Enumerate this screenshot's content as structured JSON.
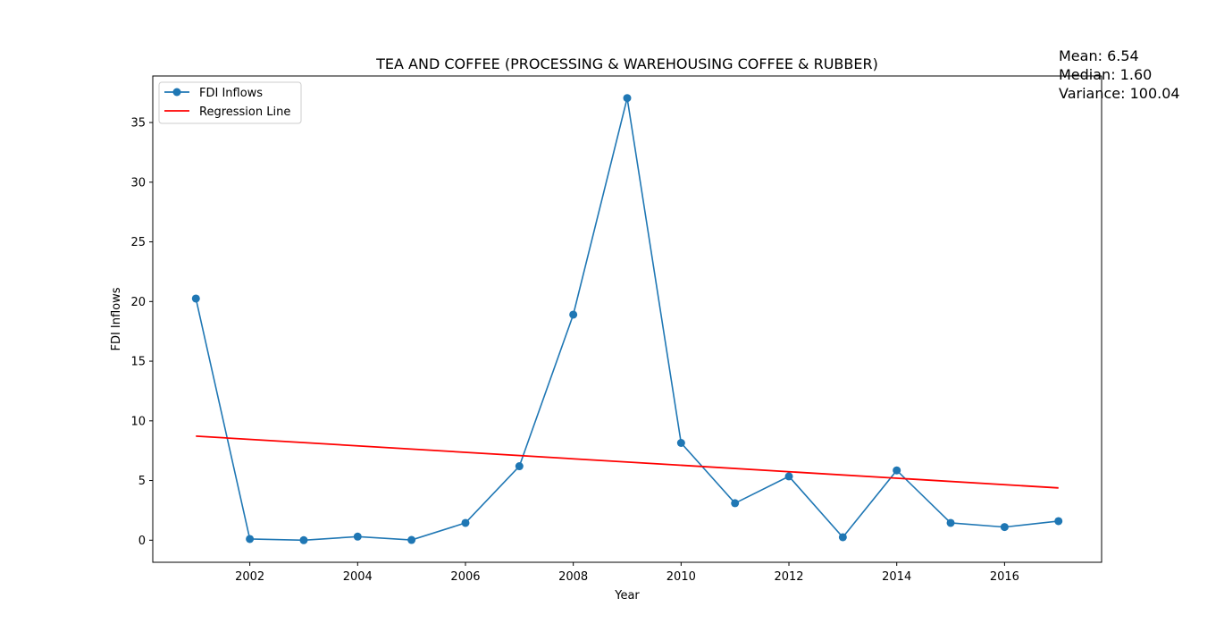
{
  "chart_data": {
    "type": "line",
    "title": "TEA AND COFFEE (PROCESSING & WAREHOUSING COFFEE & RUBBER)",
    "xlabel": "Year",
    "ylabel": "FDI Inflows",
    "xlim": [
      2000.2,
      2017.8
    ],
    "ylim": [
      -1.85,
      38.9
    ],
    "xticks": [
      2002,
      2004,
      2006,
      2008,
      2010,
      2012,
      2014,
      2016
    ],
    "yticks": [
      0,
      5,
      10,
      15,
      20,
      25,
      30,
      35
    ],
    "grid": false,
    "legend_position": "top-left",
    "series": [
      {
        "name": "FDI Inflows",
        "color": "#1f77b4",
        "marker": "circle",
        "x": [
          2001,
          2002,
          2003,
          2004,
          2005,
          2006,
          2007,
          2008,
          2009,
          2010,
          2011,
          2012,
          2013,
          2014,
          2015,
          2016,
          2017
        ],
        "y": [
          20.25,
          0.1,
          0.0,
          0.3,
          0.02,
          1.45,
          6.2,
          18.9,
          37.05,
          8.15,
          3.1,
          5.35,
          0.25,
          5.85,
          1.45,
          1.1,
          1.6
        ]
      },
      {
        "name": "Regression Line",
        "color": "#ff0000",
        "marker": "none",
        "x": [
          2001,
          2017
        ],
        "y": [
          8.72,
          4.38
        ]
      }
    ],
    "annotations": [
      "Mean: 6.54",
      "Median: 1.60",
      "Variance: 100.04"
    ]
  }
}
